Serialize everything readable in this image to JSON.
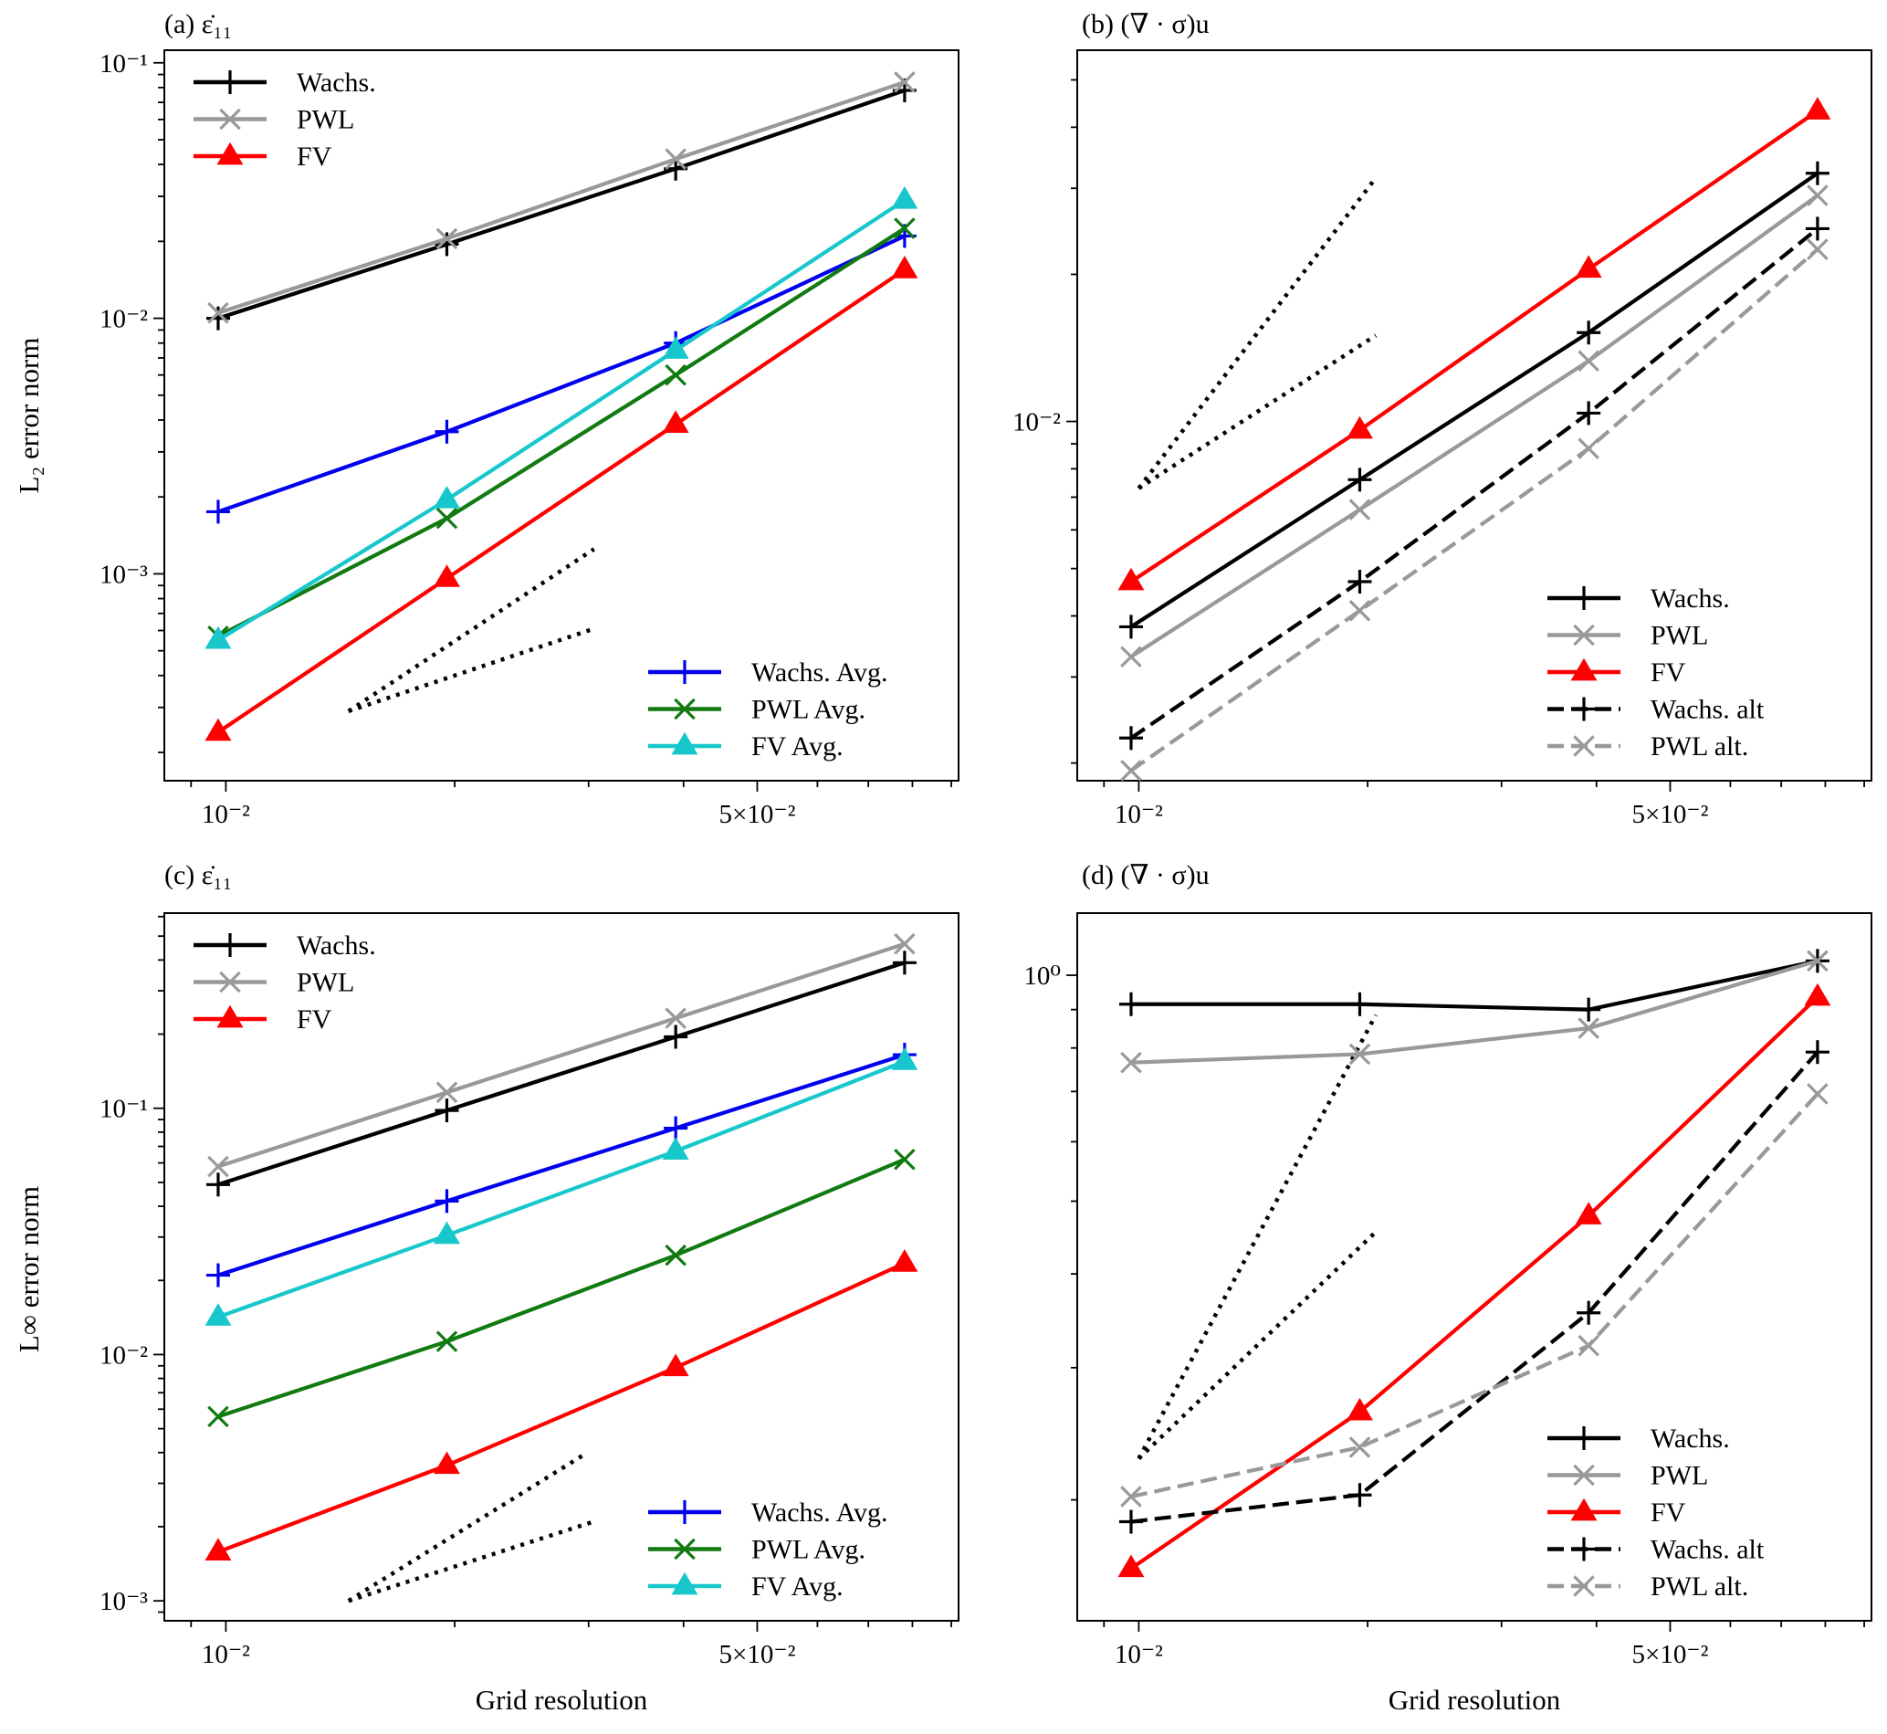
{
  "figure": {
    "xlabel": "Grid resolution",
    "ylabel_top": "L₂ error norm",
    "ylabel_bottom": "L∞ error norm"
  },
  "chart_data": [
    {
      "id": "a",
      "type": "line",
      "title": "(a) ε̇₁₁",
      "xscale": "log",
      "yscale": "log",
      "xlim": [
        0.0083,
        0.092
      ],
      "ylim": [
        0.000155,
        0.112
      ],
      "xticks": [
        {
          "value": 0.01,
          "label": "10⁻²"
        },
        {
          "value": 0.05,
          "label": "5×10⁻²"
        }
      ],
      "yticks": [
        {
          "value": 0.001,
          "label": "10⁻³"
        },
        {
          "value": 0.01,
          "label": "10⁻²"
        },
        {
          "value": 0.1,
          "label": "10⁻¹"
        }
      ],
      "x": [
        0.00977,
        0.01953,
        0.03906,
        0.07813
      ],
      "series": [
        {
          "name": "Wachs.",
          "color": "#000000",
          "dash": "solid",
          "marker": "plus",
          "values": [
            0.01,
            0.0195,
            0.0385,
            0.078
          ]
        },
        {
          "name": "PWL",
          "color": "#999999",
          "dash": "solid",
          "marker": "x",
          "values": [
            0.0105,
            0.0205,
            0.042,
            0.084
          ]
        },
        {
          "name": "FV",
          "color": "#ff0000",
          "dash": "solid",
          "marker": "triangle",
          "values": [
            0.00024,
            0.00096,
            0.00385,
            0.0155
          ]
        },
        {
          "name": "Wachs. Avg.",
          "color": "#0000ee",
          "dash": "solid",
          "marker": "plus",
          "values": [
            0.00175,
            0.0036,
            0.008,
            0.021
          ]
        },
        {
          "name": "PWL Avg.",
          "color": "#117a11",
          "dash": "solid",
          "marker": "x",
          "values": [
            0.00057,
            0.00165,
            0.006,
            0.0225
          ]
        },
        {
          "name": "FV Avg.",
          "color": "#17c7cc",
          "dash": "solid",
          "marker": "triangle",
          "values": [
            0.00055,
            0.00195,
            0.0075,
            0.029
          ]
        }
      ],
      "reference_lines": [
        {
          "x": [
            0.0145,
            0.0305
          ],
          "y": [
            0.00029,
            0.00125
          ],
          "slope": 2
        },
        {
          "x": [
            0.0145,
            0.0305
          ],
          "y": [
            0.00029,
            0.00061
          ],
          "slope": 1
        }
      ],
      "legends": [
        {
          "position": "upper-left",
          "series": [
            0,
            1,
            2
          ]
        },
        {
          "position": "lower-right",
          "series": [
            3,
            4,
            5
          ]
        }
      ]
    },
    {
      "id": "b",
      "type": "line",
      "title": "(b) (∇ · σ)u",
      "xscale": "log",
      "yscale": "log",
      "xlim": [
        0.0083,
        0.092
      ],
      "ylim": [
        0.00184,
        0.0575
      ],
      "xticks": [
        {
          "value": 0.01,
          "label": "10⁻²"
        },
        {
          "value": 0.05,
          "label": "5×10⁻²"
        }
      ],
      "yticks": [
        {
          "value": 0.01,
          "label": "10⁻²"
        }
      ],
      "x": [
        0.00977,
        0.01953,
        0.03906,
        0.07813
      ],
      "series": [
        {
          "name": "Wachs.",
          "color": "#000000",
          "dash": "solid",
          "marker": "plus",
          "values": [
            0.0038,
            0.0076,
            0.0152,
            0.0322
          ]
        },
        {
          "name": "PWL",
          "color": "#999999",
          "dash": "solid",
          "marker": "x",
          "values": [
            0.0033,
            0.0066,
            0.0133,
            0.029
          ]
        },
        {
          "name": "FV",
          "color": "#ff0000",
          "dash": "solid",
          "marker": "triangle",
          "values": [
            0.0047,
            0.0096,
            0.0205,
            0.0432
          ]
        },
        {
          "name": "Wachs. alt",
          "color": "#000000",
          "dash": "dashed",
          "marker": "plus",
          "values": [
            0.00225,
            0.0047,
            0.0104,
            0.0248
          ]
        },
        {
          "name": "PWL alt.",
          "color": "#999999",
          "dash": "dashed",
          "marker": "x",
          "values": [
            0.00193,
            0.0041,
            0.0088,
            0.0225
          ]
        }
      ],
      "reference_lines": [
        {
          "x": [
            0.01,
            0.0205
          ],
          "y": [
            0.0073,
            0.0315
          ],
          "slope": 2
        },
        {
          "x": [
            0.01,
            0.0205
          ],
          "y": [
            0.0073,
            0.015
          ],
          "slope": 1
        }
      ],
      "legends": [
        {
          "position": "lower-right",
          "series": [
            0,
            1,
            2,
            3,
            4
          ]
        }
      ]
    },
    {
      "id": "c",
      "type": "line",
      "title": "(c) ε̇₁₁",
      "xscale": "log",
      "yscale": "log",
      "xlim": [
        0.0083,
        0.092
      ],
      "ylim": [
        0.00083,
        0.62
      ],
      "xticks": [
        {
          "value": 0.01,
          "label": "10⁻²"
        },
        {
          "value": 0.05,
          "label": "5×10⁻²"
        }
      ],
      "yticks": [
        {
          "value": 0.001,
          "label": "10⁻³"
        },
        {
          "value": 0.01,
          "label": "10⁻²"
        },
        {
          "value": 0.1,
          "label": "10⁻¹"
        }
      ],
      "x": [
        0.00977,
        0.01953,
        0.03906,
        0.07813
      ],
      "series": [
        {
          "name": "Wachs.",
          "color": "#000000",
          "dash": "solid",
          "marker": "plus",
          "values": [
            0.049,
            0.098,
            0.195,
            0.39
          ]
        },
        {
          "name": "PWL",
          "color": "#999999",
          "dash": "solid",
          "marker": "x",
          "values": [
            0.058,
            0.116,
            0.232,
            0.465
          ]
        },
        {
          "name": "FV",
          "color": "#ff0000",
          "dash": "solid",
          "marker": "triangle",
          "values": [
            0.00158,
            0.00355,
            0.00885,
            0.0235
          ]
        },
        {
          "name": "Wachs. Avg.",
          "color": "#0000ee",
          "dash": "solid",
          "marker": "plus",
          "values": [
            0.021,
            0.042,
            0.083,
            0.165
          ]
        },
        {
          "name": "PWL Avg.",
          "color": "#117a11",
          "dash": "solid",
          "marker": "x",
          "values": [
            0.0056,
            0.0113,
            0.0253,
            0.062
          ]
        },
        {
          "name": "FV Avg.",
          "color": "#17c7cc",
          "dash": "solid",
          "marker": "triangle",
          "values": [
            0.0142,
            0.0305,
            0.067,
            0.155
          ]
        }
      ],
      "reference_lines": [
        {
          "x": [
            0.0145,
            0.0295
          ],
          "y": [
            0.001,
            0.0039
          ],
          "slope": 2
        },
        {
          "x": [
            0.0145,
            0.0305
          ],
          "y": [
            0.001,
            0.0021
          ],
          "slope": 1
        }
      ],
      "legends": [
        {
          "position": "upper-left",
          "series": [
            0,
            1,
            2
          ]
        },
        {
          "position": "lower-right",
          "series": [
            3,
            4,
            5
          ]
        }
      ]
    },
    {
      "id": "d",
      "type": "line",
      "title": "(d) (∇ · σ)u",
      "xscale": "log",
      "yscale": "log",
      "xlim": [
        0.0083,
        0.092
      ],
      "ylim": [
        0.138,
        1.21
      ],
      "xticks": [
        {
          "value": 0.01,
          "label": "10⁻²"
        },
        {
          "value": 0.05,
          "label": "5×10⁻²"
        }
      ],
      "yticks": [
        {
          "value": 1,
          "label": "10⁰"
        }
      ],
      "x": [
        0.00977,
        0.01953,
        0.03906,
        0.07813
      ],
      "series": [
        {
          "name": "Wachs.",
          "color": "#000000",
          "dash": "solid",
          "marker": "plus",
          "values": [
            0.915,
            0.915,
            0.9,
            1.045
          ]
        },
        {
          "name": "PWL",
          "color": "#999999",
          "dash": "solid",
          "marker": "x",
          "values": [
            0.765,
            0.785,
            0.85,
            1.045
          ]
        },
        {
          "name": "FV",
          "color": "#ff0000",
          "dash": "solid",
          "marker": "triangle",
          "values": [
            0.162,
            0.262,
            0.478,
            0.935
          ]
        },
        {
          "name": "Wachs. alt",
          "color": "#000000",
          "dash": "dashed",
          "marker": "plus",
          "values": [
            0.187,
            0.203,
            0.355,
            0.79
          ]
        },
        {
          "name": "PWL alt.",
          "color": "#999999",
          "dash": "dashed",
          "marker": "x",
          "values": [
            0.202,
            0.235,
            0.321,
            0.695
          ]
        }
      ],
      "reference_lines": [
        {
          "x": [
            0.01,
            0.0205
          ],
          "y": [
            0.227,
            0.885
          ],
          "slope": 2
        },
        {
          "x": [
            0.01,
            0.0205
          ],
          "y": [
            0.227,
            0.455
          ],
          "slope": 1
        }
      ],
      "legends": [
        {
          "position": "lower-right",
          "series": [
            0,
            1,
            2,
            3,
            4
          ]
        }
      ]
    }
  ]
}
